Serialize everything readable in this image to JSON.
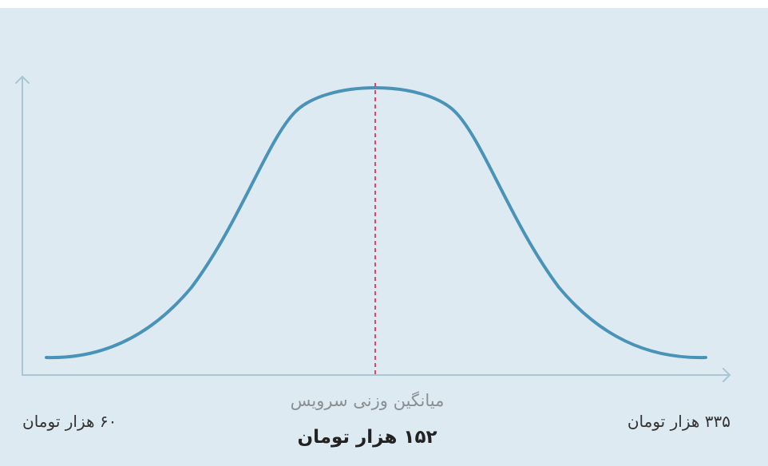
{
  "distribution": {
    "mean_caption": "میانگین وزنی سرویس",
    "mean_value": "۱۵۲ هزار تومان",
    "min_label": "۶۰ هزار تومان",
    "max_label": "۳۳۵ هزار تومان"
  }
}
